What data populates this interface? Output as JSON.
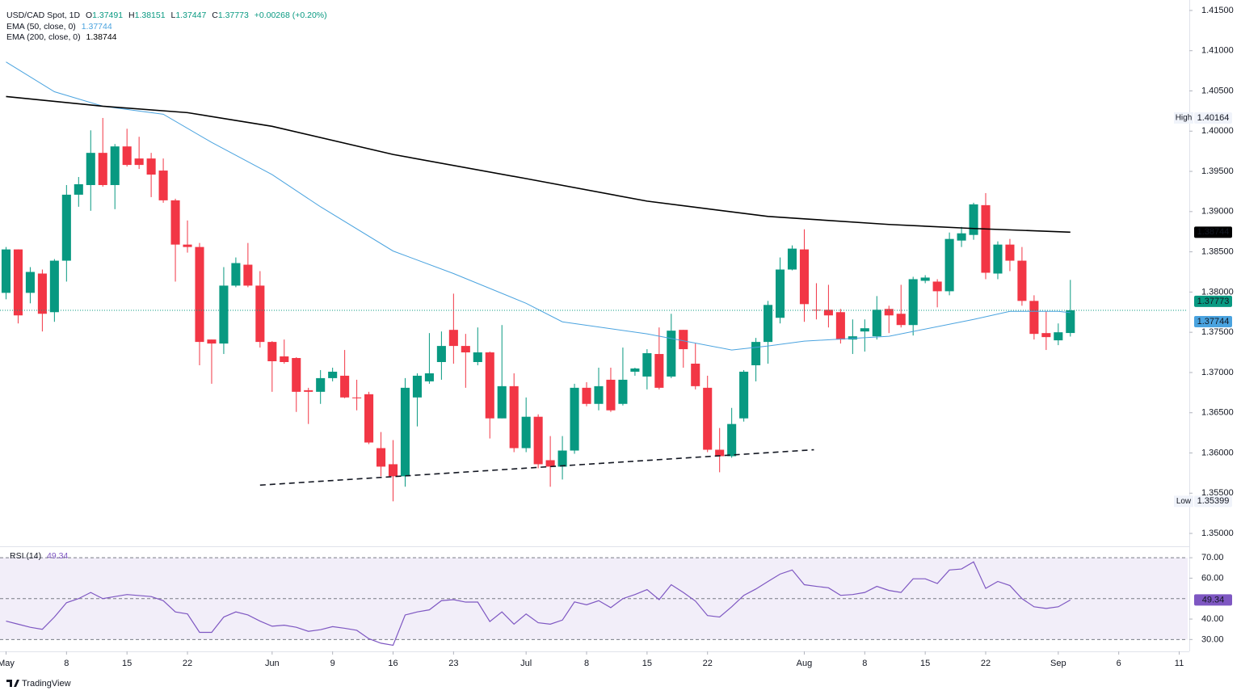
{
  "chart_data": {
    "type": "candlestick",
    "header": {
      "symbol": "USD/CAD Spot, 1D",
      "o": "O",
      "h": "H",
      "l": "L",
      "c": "C",
      "change": "+0.00268 (+0.20%)"
    },
    "up_color": "#089981",
    "down_color": "#f23645",
    "open": [
      1.3799,
      1.3853,
      1.3799,
      1.3823,
      1.3775,
      1.3839,
      1.3921,
      1.3933,
      1.3973,
      1.3933,
      1.3981,
      1.3966,
      1.3966,
      1.3951,
      1.3914,
      1.3859,
      1.3856,
      1.3741,
      1.3736,
      1.3808,
      1.3834,
      1.3808,
      1.3738,
      1.372,
      1.3718,
      1.3678,
      1.3676,
      1.3693,
      1.3696,
      1.3669,
      1.3673,
      1.3606,
      1.3586,
      1.3571,
      1.3669,
      1.3689,
      1.3713,
      1.3753,
      1.3733,
      1.3713,
      1.3725,
      1.3643,
      1.3683,
      1.3606,
      1.3645,
      1.3591,
      1.3583,
      1.3603,
      1.3681,
      1.3661,
      1.3691,
      1.3661,
      1.3701,
      1.3695,
      1.3723,
      1.3695,
      1.3753,
      1.3711,
      1.3681,
      1.3604,
      1.3596,
      1.3643,
      1.3709,
      1.3738,
      1.3768,
      1.3828,
      1.3853,
      1.3778,
      1.3778,
      1.3775,
      1.3741,
      1.3751,
      1.3745,
      1.3779,
      1.3773,
      1.3759,
      1.3814,
      1.3813,
      1.3801,
      1.3864,
      1.3871,
      1.3908,
      1.3823,
      1.3859,
      1.3839,
      1.3789,
      1.3749,
      1.374,
      1.37491
    ],
    "high": [
      1.3856,
      1.3853,
      1.3831,
      1.3828,
      1.3841,
      1.3933,
      1.3943,
      1.4001,
      1.40164,
      1.3984,
      1.4003,
      1.3993,
      1.3973,
      1.3966,
      1.3916,
      1.3889,
      1.3861,
      1.3741,
      1.3831,
      1.3843,
      1.3861,
      1.3826,
      1.3739,
      1.3741,
      1.3719,
      1.3681,
      1.3703,
      1.3706,
      1.3728,
      1.3691,
      1.3676,
      1.3626,
      1.3616,
      1.3693,
      1.3699,
      1.3749,
      1.3751,
      1.3798,
      1.3748,
      1.3756,
      1.3726,
      1.3759,
      1.3699,
      1.3669,
      1.3648,
      1.3621,
      1.3621,
      1.3686,
      1.3688,
      1.3706,
      1.3706,
      1.3731,
      1.3706,
      1.3729,
      1.3756,
      1.3773,
      1.3753,
      1.3736,
      1.3696,
      1.3631,
      1.3656,
      1.3703,
      1.3743,
      1.3789,
      1.3843,
      1.3858,
      1.3878,
      1.3811,
      1.3809,
      1.3779,
      1.3766,
      1.3766,
      1.3795,
      1.3783,
      1.3809,
      1.3819,
      1.3821,
      1.3816,
      1.3874,
      1.3881,
      1.3911,
      1.3923,
      1.3863,
      1.3866,
      1.3856,
      1.3796,
      1.3776,
      1.3761,
      1.38151
    ],
    "low": [
      1.3791,
      1.3761,
      1.3786,
      1.3751,
      1.3763,
      1.3813,
      1.3906,
      1.3901,
      1.3931,
      1.3903,
      1.3956,
      1.3953,
      1.3918,
      1.3911,
      1.3813,
      1.3849,
      1.3709,
      1.3686,
      1.3723,
      1.3806,
      1.3806,
      1.3731,
      1.3676,
      1.3711,
      1.3651,
      1.3636,
      1.3661,
      1.3689,
      1.3668,
      1.3653,
      1.3611,
      1.3571,
      1.35399,
      1.3558,
      1.3633,
      1.3686,
      1.3691,
      1.3711,
      1.3681,
      1.3709,
      1.3618,
      1.3643,
      1.3601,
      1.3601,
      1.3581,
      1.3558,
      1.3567,
      1.3599,
      1.3658,
      1.3653,
      1.3651,
      1.3659,
      1.3696,
      1.3679,
      1.3679,
      1.3693,
      1.3706,
      1.3679,
      1.3601,
      1.3576,
      1.3594,
      1.3639,
      1.3689,
      1.3711,
      1.3761,
      1.3827,
      1.3763,
      1.3766,
      1.3756,
      1.3736,
      1.3723,
      1.3726,
      1.3741,
      1.3749,
      1.3756,
      1.3746,
      1.3811,
      1.3781,
      1.3796,
      1.3856,
      1.3865,
      1.3816,
      1.3816,
      1.3826,
      1.3783,
      1.3741,
      1.3728,
      1.3734,
      1.37447
    ],
    "close": [
      1.3853,
      1.3771,
      1.3825,
      1.3773,
      1.3839,
      1.3921,
      1.3934,
      1.3973,
      1.3933,
      1.3981,
      1.3958,
      1.3958,
      1.3946,
      1.3914,
      1.3859,
      1.3856,
      1.3738,
      1.3736,
      1.3808,
      1.3836,
      1.3808,
      1.3738,
      1.3714,
      1.3713,
      1.3676,
      1.3676,
      1.3693,
      1.3701,
      1.3669,
      1.3668,
      1.3613,
      1.3583,
      1.3571,
      1.3681,
      1.3696,
      1.3699,
      1.3733,
      1.3733,
      1.3725,
      1.3725,
      1.3643,
      1.3683,
      1.3606,
      1.3645,
      1.3586,
      1.3583,
      1.3603,
      1.3681,
      1.3661,
      1.3683,
      1.3653,
      1.3691,
      1.3705,
      1.3724,
      1.3681,
      1.3752,
      1.3729,
      1.3683,
      1.3604,
      1.3596,
      1.3636,
      1.3701,
      1.3738,
      1.3784,
      1.3828,
      1.3854,
      1.3785,
      1.3777,
      1.3771,
      1.3741,
      1.3745,
      1.3755,
      1.3778,
      1.3771,
      1.3759,
      1.3816,
      1.3818,
      1.3801,
      1.3866,
      1.3873,
      1.3909,
      1.3824,
      1.3859,
      1.3839,
      1.3789,
      1.3748,
      1.3744,
      1.375,
      1.37773
    ],
    "overlays": [
      {
        "name": "EMA (50, close, 0)",
        "color": "#4aa3df",
        "x": [
          0,
          4,
          8,
          13,
          17,
          22,
          26,
          32,
          37,
          43,
          46,
          53,
          60,
          63,
          66,
          73,
          80,
          83,
          87,
          88
        ],
        "values": [
          1.4086,
          1.4049,
          1.4031,
          1.4021,
          1.3986,
          1.3946,
          1.3906,
          1.3851,
          1.3823,
          1.3786,
          1.3763,
          1.3748,
          1.3728,
          1.3733,
          1.3739,
          1.3745,
          1.3766,
          1.3776,
          1.3776,
          1.37744
        ]
      },
      {
        "name": "EMA (200, close, 0)",
        "color": "#000000",
        "x": [
          0,
          8,
          15,
          22,
          32,
          43,
          53,
          63,
          66,
          73,
          80,
          88
        ],
        "values": [
          1.4043,
          1.4031,
          1.4023,
          1.4006,
          1.3971,
          1.3941,
          1.3913,
          1.3894,
          1.3891,
          1.3884,
          1.3879,
          1.38744
        ]
      }
    ],
    "trendline": {
      "x": [
        21,
        66.8
      ],
      "values": [
        1.356,
        1.3604
      ]
    },
    "high_label": "High",
    "low_label": "Low",
    "xlim": [
      -0.5,
      97.7
    ],
    "xticks": [
      {
        "value": 0,
        "label": "May"
      },
      {
        "value": 5,
        "label": "8"
      },
      {
        "value": 10,
        "label": "15"
      },
      {
        "value": 15,
        "label": "22"
      },
      {
        "value": 22,
        "label": "Jun"
      },
      {
        "value": 27,
        "label": "9"
      },
      {
        "value": 32,
        "label": "16"
      },
      {
        "value": 37,
        "label": "23"
      },
      {
        "value": 43,
        "label": "Jul"
      },
      {
        "value": 48,
        "label": "8"
      },
      {
        "value": 53,
        "label": "15"
      },
      {
        "value": 58,
        "label": "22"
      },
      {
        "value": 66,
        "label": "Aug"
      },
      {
        "value": 71,
        "label": "8"
      },
      {
        "value": 76,
        "label": "15"
      },
      {
        "value": 81,
        "label": "22"
      },
      {
        "value": 87,
        "label": "Sep"
      },
      {
        "value": 92,
        "label": "6"
      },
      {
        "value": 97,
        "label": "11"
      }
    ],
    "ylim": [
      1.3488,
      1.4163
    ],
    "yticks": [
      {
        "value": 1.415,
        "label": "1.41500"
      },
      {
        "value": 1.41,
        "label": "1.41000"
      },
      {
        "value": 1.405,
        "label": "1.40500"
      },
      {
        "value": 1.4,
        "label": "1.40000"
      },
      {
        "value": 1.395,
        "label": "1.39500"
      },
      {
        "value": 1.39,
        "label": "1.39000"
      },
      {
        "value": 1.385,
        "label": "1.38500"
      },
      {
        "value": 1.38,
        "label": "1.38000"
      },
      {
        "value": 1.375,
        "label": "1.37500"
      },
      {
        "value": 1.37,
        "label": "1.37000"
      },
      {
        "value": 1.365,
        "label": "1.36500"
      },
      {
        "value": 1.36,
        "label": "1.36000"
      },
      {
        "value": 1.355,
        "label": "1.35500"
      },
      {
        "value": 1.35,
        "label": "1.35000"
      }
    ],
    "rsi": {
      "name": "RSI (14)",
      "color": "#7e57c2",
      "values": [
        39,
        37.5,
        36,
        35,
        41,
        48,
        50,
        53,
        50,
        51,
        52,
        51.5,
        51,
        49,
        43.5,
        42.5,
        33.5,
        33.5,
        41,
        43.5,
        42,
        39,
        36.5,
        37,
        36,
        34,
        34.8,
        36.3,
        35.5,
        34.5,
        30.4,
        28.2,
        27.2,
        42,
        43.5,
        44.5,
        49,
        49.5,
        48.3,
        48.3,
        38.8,
        43.5,
        37.5,
        42.5,
        38.2,
        37.5,
        39.5,
        48.4,
        47,
        49,
        45.6,
        50,
        52,
        54.4,
        49.5,
        56.8,
        53,
        48.8,
        41.7,
        41,
        46,
        51.6,
        54.7,
        58.4,
        62,
        64,
        56.8,
        56,
        55.3,
        51.6,
        52,
        53,
        56,
        54,
        53,
        59.7,
        59.7,
        57.4,
        64,
        64.5,
        68,
        55,
        58.4,
        56.4,
        50,
        46,
        45.2,
        46,
        49.34
      ],
      "ylim": [
        25,
        74
      ],
      "yticks": [
        {
          "value": 70,
          "label": "70.00"
        },
        {
          "value": 60,
          "label": "60.00"
        },
        {
          "value": 40,
          "label": "40.00"
        },
        {
          "value": 30,
          "label": "30.00"
        }
      ],
      "levels": [
        70,
        50,
        30
      ]
    },
    "branding": "TradingView"
  }
}
